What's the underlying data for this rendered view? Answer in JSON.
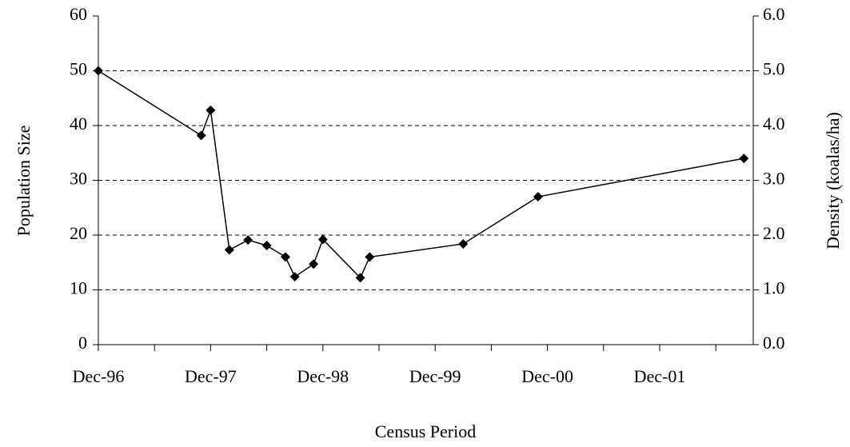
{
  "chart_data": {
    "type": "line",
    "xlabel": "Census Period",
    "ylabel": "Population Size",
    "y2label": "Density (koalas/ha)",
    "x": [
      "1996-12",
      "1997-11",
      "1997-12",
      "1998-02",
      "1998-04",
      "1998-06",
      "1998-08",
      "1998-09",
      "1998-11",
      "1998-12",
      "1999-04",
      "1999-05",
      "2000-03",
      "2000-11",
      "2002-09"
    ],
    "series": [
      {
        "name": "Population Size",
        "color": "#000000",
        "values": [
          50,
          38.2,
          42.8,
          17.3,
          19.1,
          18.1,
          16,
          12.4,
          14.7,
          19.2,
          12.2,
          16,
          18.4,
          27,
          34
        ]
      }
    ],
    "xlim": [
      "1996-12",
      "2002-10"
    ],
    "xticks": [
      {
        "value": "1996-12",
        "label": "Dec-96"
      },
      {
        "value": "1997-12",
        "label": "Dec-97"
      },
      {
        "value": "1998-12",
        "label": "Dec-98"
      },
      {
        "value": "1999-12",
        "label": "Dec-99"
      },
      {
        "value": "2000-12",
        "label": "Dec-00"
      },
      {
        "value": "2001-12",
        "label": "Dec-01"
      }
    ],
    "xminor_ticks": [
      "1997-06",
      "1998-06",
      "1999-06",
      "2000-06",
      "2001-06",
      "2002-06"
    ],
    "ylim": [
      0,
      60
    ],
    "yticks": [
      0,
      10,
      20,
      30,
      40,
      50,
      60
    ],
    "y2lim": [
      0,
      6
    ],
    "y2ticks": [
      {
        "value": 0,
        "label": "0.0"
      },
      {
        "value": 1,
        "label": "1.0"
      },
      {
        "value": 2,
        "label": "2.0"
      },
      {
        "value": 3,
        "label": "3.0"
      },
      {
        "value": 4,
        "label": "4.0"
      },
      {
        "value": 5,
        "label": "5.0"
      },
      {
        "value": 6,
        "label": "6.0"
      }
    ],
    "grid": true
  }
}
